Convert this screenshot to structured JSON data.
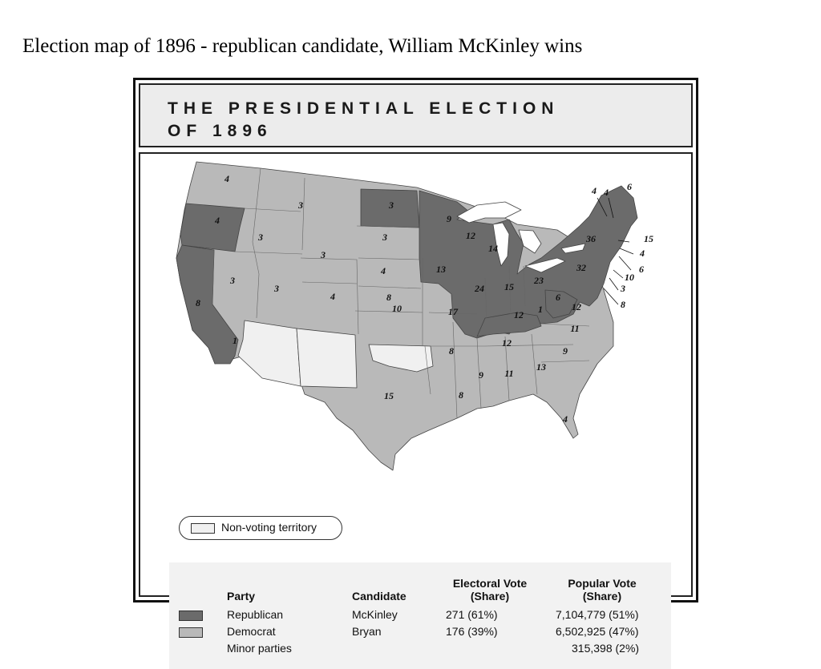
{
  "caption": "Election map of 1896 - republican candidate, William McKinley wins",
  "map_title": {
    "line1": "THE PRESIDENTIAL ELECTION",
    "line2": "OF 1896"
  },
  "colors": {
    "republican": "#6b6b6b",
    "democrat": "#b9b9b9",
    "non_voting": "#f0f0f0",
    "water": "#ffffff",
    "border": "#444444"
  },
  "legend": {
    "non_voting_label": "Non-voting territory"
  },
  "state_labels": [
    "4",
    "4",
    "8",
    "3",
    "1",
    "3",
    "3",
    "3",
    "3",
    "4",
    "3",
    "3",
    "4",
    "8",
    "10",
    "17",
    "15",
    "9",
    "12",
    "13",
    "14",
    "24",
    "15",
    "23",
    "12",
    "8",
    "9",
    "11",
    "13",
    "8",
    "4",
    "1",
    "12",
    "11",
    "9",
    "32",
    "6",
    "36",
    "4",
    "4",
    "6",
    "15",
    "4",
    "6",
    "10",
    "3",
    "8",
    "12"
  ],
  "results_table": {
    "headers": {
      "party": "Party",
      "candidate": "Candidate",
      "electoral_1": "Electoral Vote",
      "electoral_2": "(Share)",
      "popular_1": "Popular Vote",
      "popular_2": "(Share)"
    },
    "rows": [
      {
        "party": "Republican",
        "candidate": "McKinley",
        "electoral": "271 (61%)",
        "popular": "7,104,779 (51%)"
      },
      {
        "party": "Democrat",
        "candidate": "Bryan",
        "electoral": "176 (39%)",
        "popular": "6,502,925 (47%)"
      },
      {
        "party": "Minor parties",
        "candidate": "",
        "electoral": "",
        "popular": "315,398 (2%)"
      }
    ]
  }
}
